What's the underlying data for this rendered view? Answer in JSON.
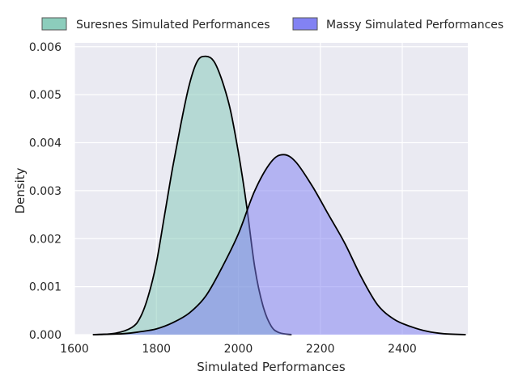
{
  "chart_data": {
    "type": "area",
    "xlabel": "Simulated Performances",
    "ylabel": "Density",
    "xlim": [
      1600,
      2560
    ],
    "ylim": [
      0,
      0.00608
    ],
    "x_ticks": [
      1600,
      1800,
      2000,
      2200,
      2400
    ],
    "x_tick_labels": [
      "1600",
      "1800",
      "2000",
      "2200",
      "2400"
    ],
    "y_ticks": [
      0,
      0.001,
      0.002,
      0.003,
      0.004,
      0.005,
      0.006
    ],
    "y_tick_labels": [
      "0.000",
      "0.001",
      "0.002",
      "0.003",
      "0.004",
      "0.005",
      "0.006"
    ],
    "grid": true,
    "legend_position": "top",
    "series": [
      {
        "name": "Suresnes Simulated Performances",
        "color": "#7fc8b5",
        "x": [
          1645,
          1700,
          1740,
          1760,
          1780,
          1800,
          1820,
          1840,
          1860,
          1880,
          1900,
          1920,
          1940,
          1960,
          1980,
          2000,
          2020,
          2040,
          2060,
          2080,
          2100,
          2130
        ],
        "y": [
          0.0,
          3e-05,
          0.00015,
          0.00035,
          0.0008,
          0.0015,
          0.0025,
          0.0035,
          0.0044,
          0.0052,
          0.0057,
          0.0058,
          0.0057,
          0.0053,
          0.0047,
          0.0038,
          0.0027,
          0.0014,
          0.0006,
          0.00018,
          4e-05,
          0.0
        ]
      },
      {
        "name": "Massy Simulated Performances",
        "color": "#7b7bf2",
        "x": [
          1645,
          1720,
          1760,
          1800,
          1840,
          1880,
          1920,
          1960,
          2000,
          2040,
          2080,
          2110,
          2140,
          2180,
          2220,
          2260,
          2300,
          2340,
          2380,
          2420,
          2460,
          2500,
          2555
        ],
        "y": [
          0.0,
          2e-05,
          6e-05,
          0.00012,
          0.00025,
          0.00045,
          0.0008,
          0.0014,
          0.0021,
          0.003,
          0.0036,
          0.00375,
          0.0036,
          0.0031,
          0.0025,
          0.0019,
          0.0012,
          0.00062,
          0.00032,
          0.00017,
          7e-05,
          2e-05,
          0.0
        ]
      }
    ]
  }
}
